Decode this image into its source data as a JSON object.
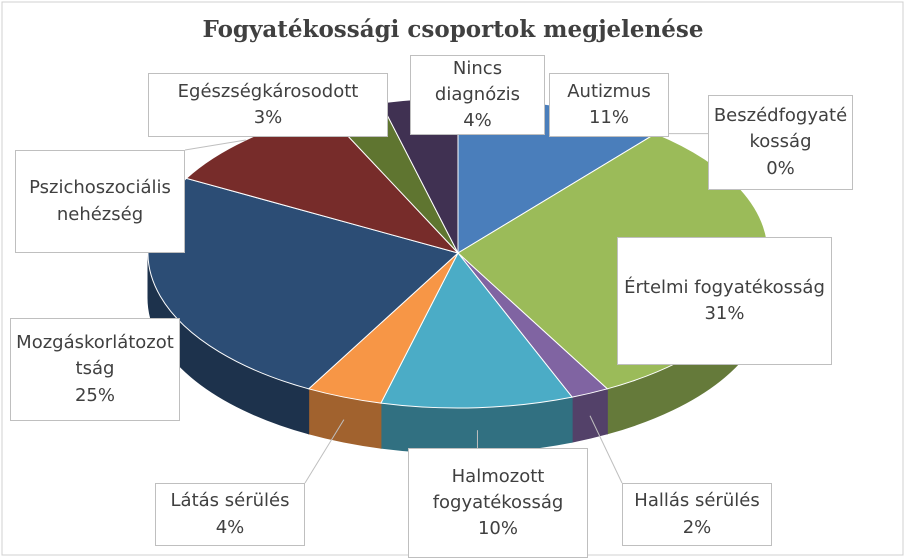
{
  "chart_data": {
    "type": "pie3d",
    "title": "Fogyatékossági csoportok megjelenése",
    "categories": [
      "Autizmus",
      "Beszédfogyatékosság",
      "Értelmi fogyatékosság",
      "Hallás sérülés",
      "Halmozott fogyatékosság",
      "Látás sérülés",
      "Mozgáskorlátozottság",
      "Pszichoszociális nehézség",
      "Egészségkárosodott",
      "Nincs diagnózis"
    ],
    "values": [
      11,
      0,
      31,
      2,
      10,
      4,
      25,
      10,
      3,
      4
    ],
    "value_labels": [
      "11%",
      "0%",
      "31%",
      "2%",
      "10%",
      "4%",
      "25%",
      null,
      "3%",
      "4%"
    ],
    "colors": [
      "#4a7ebb",
      "#be4b48",
      "#9bbb59",
      "#8064a2",
      "#4bacc6",
      "#f79646",
      "#2c4d75",
      "#772c2a",
      "#5f7530",
      "#403152"
    ]
  }
}
